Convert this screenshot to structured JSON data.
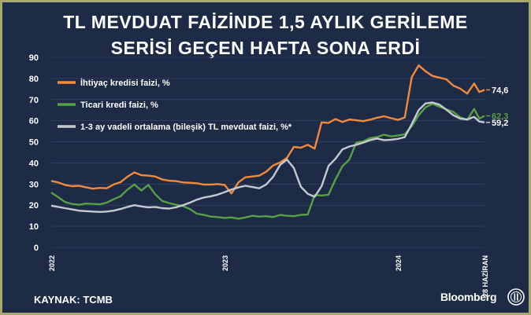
{
  "title": {
    "line1": "TL MEVDUAT FAİZİNDE 1,5 AYLIK GERİLEME",
    "line2": "SERİSİ GEÇEN HAFTA SONA ERDİ"
  },
  "source": "KAYNAK: TCMB",
  "brand": "Bloomberg",
  "colors": {
    "background": "#1d2b47",
    "frame": "#a8a86e",
    "ihtiyac": "#f28a3c",
    "ticari": "#5a9e45",
    "mevduat": "#c5c9d2",
    "grid": "#3a4a68",
    "text": "#ffffff"
  },
  "chart_data": {
    "type": "line",
    "ylim": [
      0,
      90
    ],
    "yticks": [
      "0",
      "10",
      "20",
      "30",
      "40",
      "50",
      "60",
      "70",
      "80",
      "90"
    ],
    "xlim": [
      2022.0,
      2024.5
    ],
    "xticks": [
      {
        "x": 2022.0,
        "label": "2022"
      },
      {
        "x": 2023.0,
        "label": "2023"
      },
      {
        "x": 2024.0,
        "label": "2024"
      },
      {
        "x": 2024.5,
        "label": "28 HAZİRAN"
      }
    ],
    "legend_position": "top-left",
    "series": [
      {
        "name": "İhtiyaç kredisi faizi, %",
        "color": "#f28a3c",
        "end_label": "74,6",
        "x": [
          2022.0,
          2022.04,
          2022.08,
          2022.12,
          2022.16,
          2022.2,
          2022.24,
          2022.28,
          2022.32,
          2022.36,
          2022.4,
          2022.44,
          2022.48,
          2022.52,
          2022.56,
          2022.6,
          2022.64,
          2022.68,
          2022.72,
          2022.76,
          2022.8,
          2022.84,
          2022.88,
          2022.92,
          2022.96,
          2023.0,
          2023.04,
          2023.08,
          2023.12,
          2023.16,
          2023.2,
          2023.24,
          2023.28,
          2023.32,
          2023.36,
          2023.4,
          2023.44,
          2023.48,
          2023.52,
          2023.56,
          2023.6,
          2023.64,
          2023.68,
          2023.72,
          2023.76,
          2023.8,
          2023.84,
          2023.88,
          2023.92,
          2023.96,
          2024.0,
          2024.04,
          2024.08,
          2024.12,
          2024.16,
          2024.2,
          2024.24,
          2024.28,
          2024.32,
          2024.36,
          2024.4,
          2024.44,
          2024.47,
          2024.5
        ],
        "values": [
          31.5,
          30.8,
          29.6,
          29.0,
          29.2,
          28.5,
          27.8,
          28.2,
          28.0,
          29.8,
          30.9,
          33.5,
          35.5,
          34.2,
          34.0,
          33.6,
          32.2,
          31.6,
          31.4,
          30.8,
          30.6,
          30.4,
          29.8,
          29.8,
          30.0,
          29.6,
          25.6,
          30.8,
          33.2,
          33.6,
          34.0,
          35.8,
          38.8,
          40.2,
          42.4,
          47.6,
          47.2,
          48.6,
          46.8,
          59.2,
          59.0,
          60.8,
          59.4,
          60.6,
          60.2,
          59.8,
          60.5,
          61.4,
          62.1,
          61.2,
          60.4,
          61.5,
          80.6,
          86.2,
          83.4,
          81.2,
          80.4,
          79.6,
          76.6,
          75.2,
          72.8,
          77.6,
          73.6,
          74.6
        ]
      },
      {
        "name": "Ticari kredi faizi, %",
        "color": "#5a9e45",
        "end_label": "62,3",
        "x": [
          2022.0,
          2022.04,
          2022.08,
          2022.12,
          2022.16,
          2022.2,
          2022.24,
          2022.28,
          2022.32,
          2022.36,
          2022.4,
          2022.44,
          2022.48,
          2022.52,
          2022.56,
          2022.6,
          2022.64,
          2022.68,
          2022.72,
          2022.76,
          2022.8,
          2022.84,
          2022.88,
          2022.92,
          2022.96,
          2023.0,
          2023.04,
          2023.08,
          2023.12,
          2023.16,
          2023.2,
          2023.24,
          2023.28,
          2023.32,
          2023.36,
          2023.4,
          2023.44,
          2023.48,
          2023.52,
          2023.56,
          2023.6,
          2023.64,
          2023.68,
          2023.72,
          2023.76,
          2023.8,
          2023.84,
          2023.88,
          2023.92,
          2023.96,
          2024.0,
          2024.04,
          2024.08,
          2024.12,
          2024.16,
          2024.2,
          2024.24,
          2024.28,
          2024.32,
          2024.36,
          2024.4,
          2024.44,
          2024.47,
          2024.5
        ],
        "values": [
          26.0,
          23.8,
          21.5,
          20.6,
          20.2,
          20.8,
          20.6,
          20.4,
          21.2,
          22.8,
          24.2,
          27.4,
          29.8,
          27.0,
          29.6,
          25.2,
          22.0,
          21.0,
          20.2,
          19.6,
          18.2,
          16.0,
          15.4,
          14.6,
          14.4,
          14.0,
          14.2,
          13.6,
          14.2,
          15.0,
          14.6,
          14.8,
          14.4,
          15.4,
          15.0,
          14.8,
          15.4,
          15.6,
          24.8,
          24.6,
          25.0,
          32.2,
          38.4,
          41.6,
          49.6,
          50.2,
          51.8,
          52.2,
          53.4,
          52.6,
          53.0,
          53.6,
          57.4,
          62.6,
          66.4,
          68.0,
          66.6,
          65.4,
          64.2,
          61.6,
          60.4,
          65.6,
          61.0,
          62.3
        ]
      },
      {
        "name": "1-3 ay vadeli ortalama (bileşik) TL mevduat faizi, %*",
        "color": "#c5c9d2",
        "end_label": "59,2",
        "x": [
          2022.0,
          2022.04,
          2022.08,
          2022.12,
          2022.16,
          2022.2,
          2022.24,
          2022.28,
          2022.32,
          2022.36,
          2022.4,
          2022.44,
          2022.48,
          2022.52,
          2022.56,
          2022.6,
          2022.64,
          2022.68,
          2022.72,
          2022.76,
          2022.8,
          2022.84,
          2022.88,
          2022.92,
          2022.96,
          2023.0,
          2023.04,
          2023.08,
          2023.12,
          2023.16,
          2023.2,
          2023.24,
          2023.28,
          2023.32,
          2023.36,
          2023.4,
          2023.44,
          2023.48,
          2023.52,
          2023.56,
          2023.6,
          2023.64,
          2023.68,
          2023.72,
          2023.76,
          2023.8,
          2023.84,
          2023.88,
          2023.92,
          2023.96,
          2024.0,
          2024.04,
          2024.08,
          2024.12,
          2024.16,
          2024.2,
          2024.24,
          2024.28,
          2024.32,
          2024.36,
          2024.4,
          2024.44,
          2024.47,
          2024.5
        ],
        "values": [
          19.8,
          19.2,
          18.6,
          18.0,
          17.4,
          17.2,
          17.0,
          16.8,
          17.0,
          17.4,
          18.2,
          19.2,
          20.0,
          19.4,
          19.0,
          19.2,
          18.6,
          18.4,
          19.0,
          20.0,
          21.2,
          22.6,
          23.6,
          24.2,
          25.0,
          26.2,
          27.4,
          28.4,
          29.2,
          28.6,
          28.0,
          29.8,
          33.4,
          39.0,
          41.6,
          37.6,
          28.8,
          25.4,
          24.0,
          29.0,
          38.6,
          42.0,
          46.4,
          47.8,
          48.6,
          49.6,
          50.8,
          51.6,
          50.8,
          51.0,
          51.4,
          52.2,
          58.4,
          65.0,
          68.2,
          68.6,
          67.6,
          65.2,
          62.6,
          61.0,
          60.6,
          61.8,
          59.6,
          59.2
        ]
      }
    ]
  }
}
